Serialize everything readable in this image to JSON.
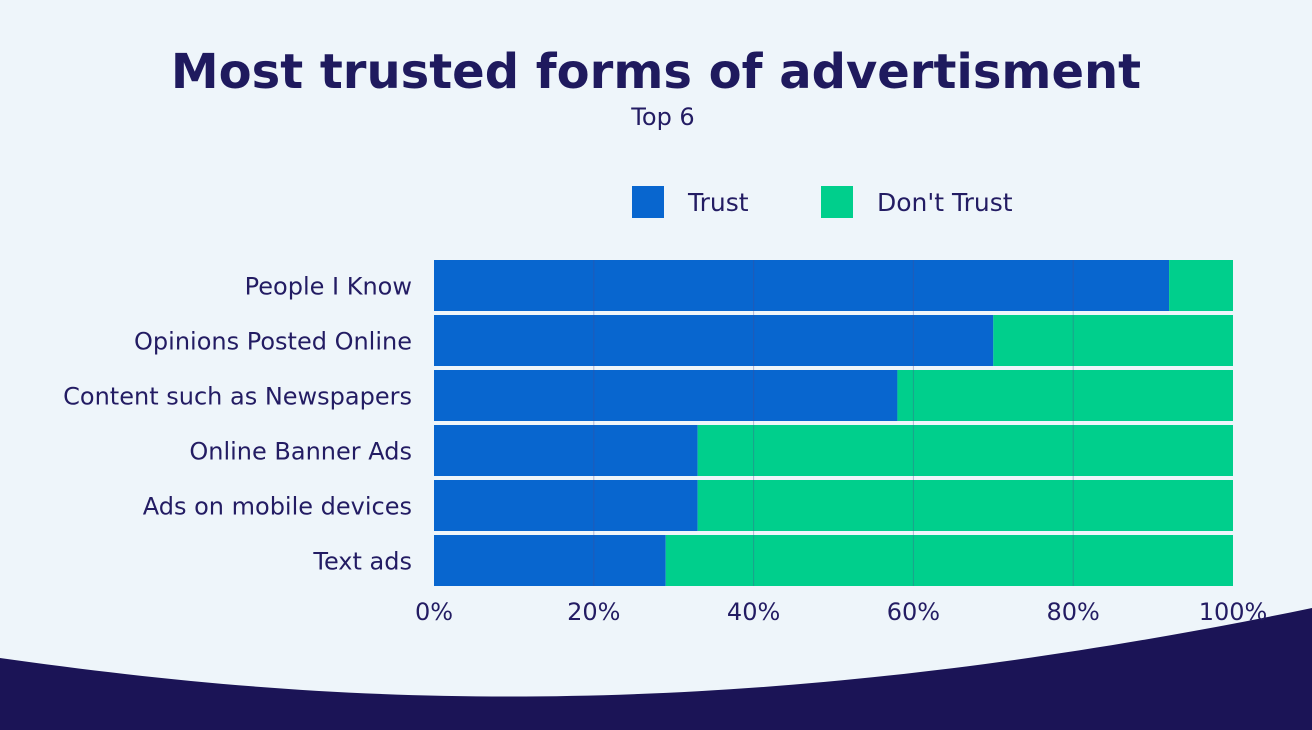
{
  "chart_data": {
    "type": "bar",
    "orientation": "horizontal",
    "stacked": true,
    "title": "Most trusted forms of advertisment",
    "subtitle": "Top 6",
    "categories": [
      "People I Know",
      "Opinions Posted Online",
      "Content such as Newspapers",
      "Online Banner Ads",
      "Ads on mobile devices",
      "Text ads"
    ],
    "series": [
      {
        "name": "Trust",
        "values": [
          92,
          70,
          58,
          33,
          33,
          29
        ]
      },
      {
        "name": "Don't Trust",
        "values": [
          8,
          30,
          42,
          67,
          67,
          71
        ]
      }
    ],
    "xlim": [
      0,
      100
    ],
    "x_ticks": [
      "0%",
      "20%",
      "40%",
      "60%",
      "80%",
      "100%"
    ],
    "legend_position": "top-center",
    "grid": true
  },
  "colors": {
    "background": "#eef5fa",
    "title": "#1f1a5e",
    "text": "#231c63",
    "trust": "#0866cf",
    "dont_trust": "#00cf8c",
    "grid": "#4f4a8a",
    "wave": "#1b1456"
  }
}
